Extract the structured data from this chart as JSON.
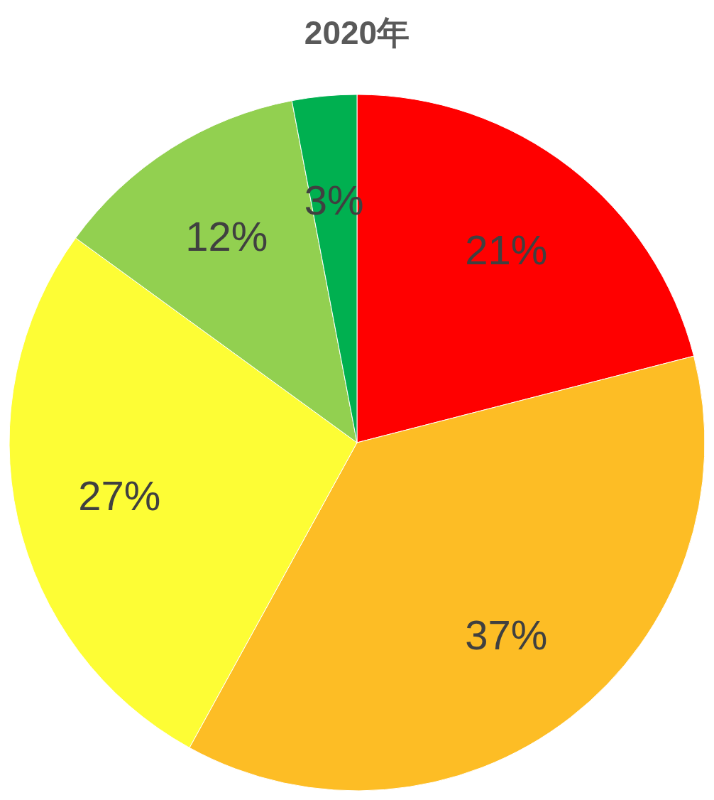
{
  "chart_data": {
    "type": "pie",
    "title": "2020年",
    "categories": [
      null,
      null,
      null,
      null,
      null
    ],
    "values": [
      21,
      37,
      27,
      12,
      3
    ],
    "colors": [
      "#ff0000",
      "#fdbd25",
      "#fdfd35",
      "#92d050",
      "#00b050"
    ],
    "value_labels": [
      "21%",
      "37%",
      "27%",
      "12%",
      "3%"
    ]
  }
}
